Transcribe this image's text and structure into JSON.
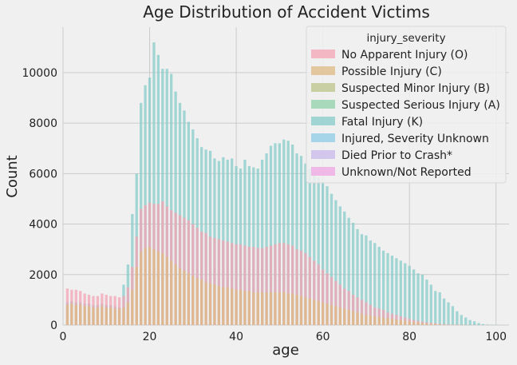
{
  "chart_data": {
    "type": "bar",
    "title": "Age Distribution of Accident Victims",
    "xlabel": "age",
    "ylabel": "Count",
    "xlim": [
      0,
      103
    ],
    "ylim": [
      0,
      11800
    ],
    "xticks": [
      0,
      20,
      40,
      60,
      80,
      100
    ],
    "yticks": [
      0,
      2000,
      4000,
      6000,
      8000,
      10000
    ],
    "grid": true,
    "legend_title": "injury_severity",
    "legend_position": "top-right",
    "bar_offset": 0.3,
    "bar_width": 0.6,
    "series_colors": {
      "No Apparent Injury (O)": "#f4a3b4",
      "Possible Injury (C)": "#dfb983",
      "Suspected Minor Injury (B)": "#bcc38a",
      "Suspected Serious Injury (A)": "#8fd1a8",
      "Fatal Injury (K)": "#86ccc9",
      "Injured, Severity Unknown": "#8dcbe6",
      "Died Prior to Crash*": "#c9b8ec",
      "Unknown/Not Reported": "#f0a5e4"
    },
    "bars_draw_order": [
      "Fatal Injury (K)",
      "No Apparent Injury (O)",
      "Possible Injury (C)"
    ],
    "series": [
      {
        "name": "Fatal Injury (K)",
        "x": [
          1,
          2,
          3,
          4,
          5,
          6,
          7,
          8,
          9,
          10,
          11,
          12,
          13,
          14,
          15,
          16,
          17,
          18,
          19,
          20,
          21,
          22,
          23,
          24,
          25,
          26,
          27,
          28,
          29,
          30,
          31,
          32,
          33,
          34,
          35,
          36,
          37,
          38,
          39,
          40,
          41,
          42,
          43,
          44,
          45,
          46,
          47,
          48,
          49,
          50,
          51,
          52,
          53,
          54,
          55,
          56,
          57,
          58,
          59,
          60,
          61,
          62,
          63,
          64,
          65,
          66,
          67,
          68,
          69,
          70,
          71,
          72,
          73,
          74,
          75,
          76,
          77,
          78,
          79,
          80,
          81,
          82,
          83,
          84,
          85,
          86,
          87,
          88,
          89,
          90,
          91,
          92,
          93,
          94,
          95,
          96,
          97,
          98,
          99,
          100
        ],
        "values": [
          900,
          950,
          900,
          900,
          850,
          850,
          800,
          800,
          850,
          800,
          800,
          750,
          700,
          1600,
          2400,
          4400,
          6000,
          8800,
          9500,
          9800,
          11200,
          10700,
          10150,
          10150,
          9950,
          9250,
          8800,
          8500,
          8050,
          7750,
          7400,
          7050,
          6950,
          6900,
          6600,
          6500,
          6650,
          6550,
          6600,
          6300,
          6200,
          6550,
          6300,
          6250,
          6200,
          6550,
          6800,
          7100,
          7200,
          7200,
          7350,
          7300,
          7150,
          6800,
          6700,
          6400,
          6200,
          6050,
          5850,
          5700,
          5500,
          5200,
          4950,
          4700,
          4500,
          4250,
          4050,
          3800,
          3600,
          3550,
          3350,
          3250,
          3100,
          2950,
          2850,
          2750,
          2650,
          2550,
          2450,
          2350,
          2200,
          2050,
          2000,
          1800,
          1600,
          1350,
          1300,
          1050,
          900,
          750,
          550,
          400,
          300,
          200,
          150,
          80,
          40,
          20,
          10,
          5
        ]
      },
      {
        "name": "No Apparent Injury (O)",
        "x": [
          1,
          2,
          3,
          4,
          5,
          6,
          7,
          8,
          9,
          10,
          11,
          12,
          13,
          14,
          15,
          16,
          17,
          18,
          19,
          20,
          21,
          22,
          23,
          24,
          25,
          26,
          27,
          28,
          29,
          30,
          31,
          32,
          33,
          34,
          35,
          36,
          37,
          38,
          39,
          40,
          41,
          42,
          43,
          44,
          45,
          46,
          47,
          48,
          49,
          50,
          51,
          52,
          53,
          54,
          55,
          56,
          57,
          58,
          59,
          60,
          61,
          62,
          63,
          64,
          65,
          66,
          67,
          68,
          69,
          70,
          71,
          72,
          73,
          74,
          75,
          76,
          77,
          78,
          79,
          80,
          81,
          82,
          83,
          84,
          85,
          86,
          87,
          88,
          89,
          90,
          91,
          92,
          93,
          94,
          95,
          96,
          97,
          98,
          99,
          100
        ],
        "values": [
          1450,
          1400,
          1400,
          1350,
          1250,
          1200,
          1150,
          1150,
          1250,
          1200,
          1150,
          1150,
          1100,
          1150,
          1500,
          2300,
          3500,
          4600,
          4750,
          4850,
          4800,
          4800,
          4900,
          4700,
          4550,
          4450,
          4350,
          4250,
          4150,
          4000,
          3850,
          3700,
          3650,
          3500,
          3450,
          3400,
          3350,
          3300,
          3250,
          3200,
          3200,
          3150,
          3100,
          3100,
          3050,
          3050,
          3100,
          3150,
          3200,
          3250,
          3250,
          3200,
          3150,
          3000,
          2950,
          2850,
          2700,
          2550,
          2400,
          2200,
          2050,
          1900,
          1750,
          1600,
          1450,
          1350,
          1200,
          1100,
          1000,
          900,
          800,
          700,
          650,
          600,
          500,
          450,
          400,
          350,
          300,
          250,
          200,
          170,
          140,
          110,
          90,
          70,
          50,
          35,
          25,
          18,
          12,
          8,
          5,
          3,
          2,
          1,
          1,
          0,
          0,
          0
        ]
      },
      {
        "name": "Possible Injury (C)",
        "x": [
          1,
          2,
          3,
          4,
          5,
          6,
          7,
          8,
          9,
          10,
          11,
          12,
          13,
          14,
          15,
          16,
          17,
          18,
          19,
          20,
          21,
          22,
          23,
          24,
          25,
          26,
          27,
          28,
          29,
          30,
          31,
          32,
          33,
          34,
          35,
          36,
          37,
          38,
          39,
          40,
          41,
          42,
          43,
          44,
          45,
          46,
          47,
          48,
          49,
          50,
          51,
          52,
          53,
          54,
          55,
          56,
          57,
          58,
          59,
          60,
          61,
          62,
          63,
          64,
          65,
          66,
          67,
          68,
          69,
          70,
          71,
          72,
          73,
          74,
          75,
          76,
          77,
          78,
          79,
          80,
          81,
          82,
          83,
          84,
          85,
          86,
          87,
          88,
          89,
          90,
          91,
          92,
          93,
          94,
          95,
          96,
          97,
          98,
          99,
          100
        ],
        "values": [
          800,
          850,
          800,
          800,
          750,
          750,
          700,
          700,
          750,
          700,
          700,
          650,
          650,
          700,
          900,
          1400,
          2300,
          2900,
          3050,
          3100,
          3000,
          2900,
          2850,
          2700,
          2550,
          2400,
          2250,
          2150,
          2050,
          1950,
          1850,
          1800,
          1700,
          1650,
          1600,
          1550,
          1500,
          1500,
          1450,
          1400,
          1400,
          1350,
          1350,
          1300,
          1300,
          1300,
          1300,
          1300,
          1300,
          1300,
          1300,
          1250,
          1250,
          1200,
          1150,
          1100,
          1050,
          1000,
          950,
          900,
          850,
          800,
          750,
          700,
          650,
          600,
          550,
          500,
          450,
          400,
          380,
          350,
          330,
          300,
          280,
          250,
          220,
          200,
          180,
          150,
          130,
          100,
          80,
          60,
          50,
          40,
          30,
          20,
          15,
          10,
          8,
          5,
          3,
          2,
          1,
          1,
          0,
          0,
          0,
          0
        ]
      }
    ]
  }
}
